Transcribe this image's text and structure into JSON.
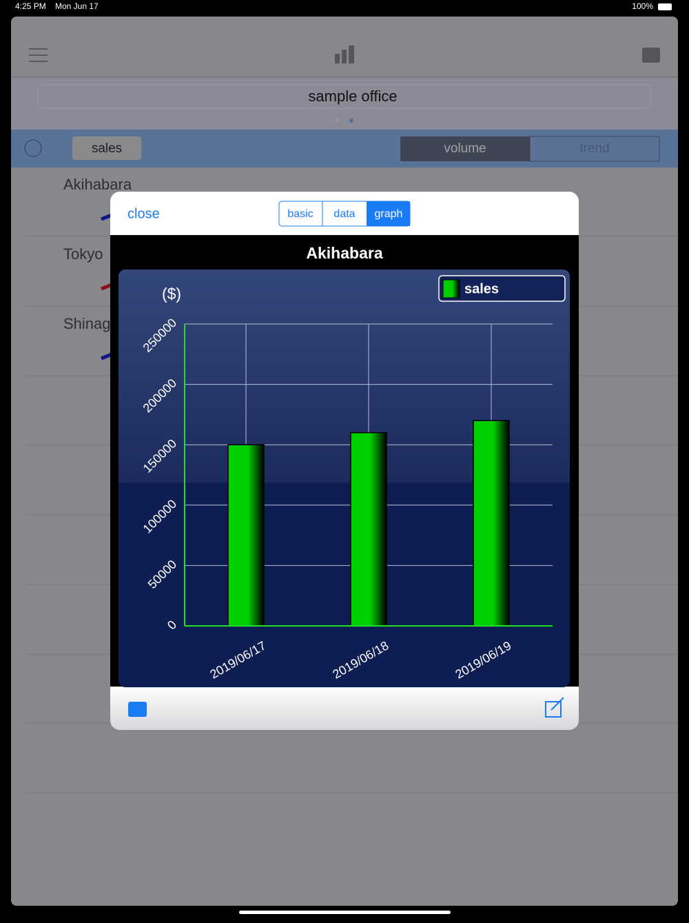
{
  "status_bar": {
    "time": "4:25 PM",
    "date": "Mon Jun 17",
    "battery": "100%"
  },
  "header": {
    "title": "sample office"
  },
  "toolbar": {
    "metric": "sales",
    "tabs": [
      "volume",
      "trend"
    ]
  },
  "list": [
    "Akihabara",
    "Tokyo",
    "Shinag"
  ],
  "modal": {
    "close": "close",
    "segments": [
      "basic",
      "data",
      "graph"
    ]
  },
  "chart_data": {
    "type": "bar",
    "title": "Akihabara",
    "y_label": "($)",
    "categories": [
      "2019/06/17",
      "2019/06/18",
      "2019/06/19"
    ],
    "series": [
      {
        "name": "sales",
        "color": "#00d000",
        "values": [
          150000,
          160000,
          170000
        ]
      }
    ],
    "ylim": [
      0,
      250000
    ],
    "yticks": [
      0,
      50000,
      100000,
      150000,
      200000,
      250000
    ],
    "grid": true,
    "legend": "top-right"
  }
}
